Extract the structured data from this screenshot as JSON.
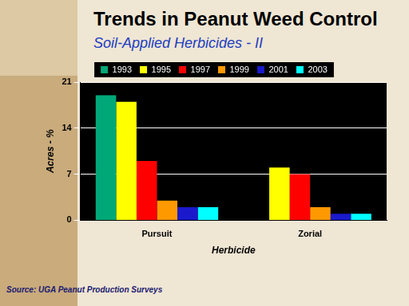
{
  "chart_data": {
    "type": "bar",
    "title": "Trends in Peanut Weed Control",
    "subtitle": "Soil-Applied Herbicides - II",
    "annotations": [
      "Source: UGA Peanut Production Surveys"
    ],
    "x_label": "Herbicide",
    "y_label": "Acres - %",
    "categories": [
      "Pursuit",
      "Zorial"
    ],
    "series": [
      {
        "name": "1993",
        "color": "#00a878",
        "values": [
          19,
          null
        ]
      },
      {
        "name": "1995",
        "color": "#ffff00",
        "values": [
          18,
          8
        ]
      },
      {
        "name": "1997",
        "color": "#ff0000",
        "values": [
          9,
          7
        ]
      },
      {
        "name": "1999",
        "color": "#ff9900",
        "values": [
          3,
          2
        ]
      },
      {
        "name": "2001",
        "color": "#1a1acc",
        "values": [
          2,
          1
        ]
      },
      {
        "name": "2003",
        "color": "#00ffff",
        "values": [
          2,
          1
        ]
      }
    ],
    "ylim": [
      0,
      21
    ],
    "yticks": [
      0,
      7,
      14,
      21
    ],
    "grid": true,
    "legend": "top"
  }
}
